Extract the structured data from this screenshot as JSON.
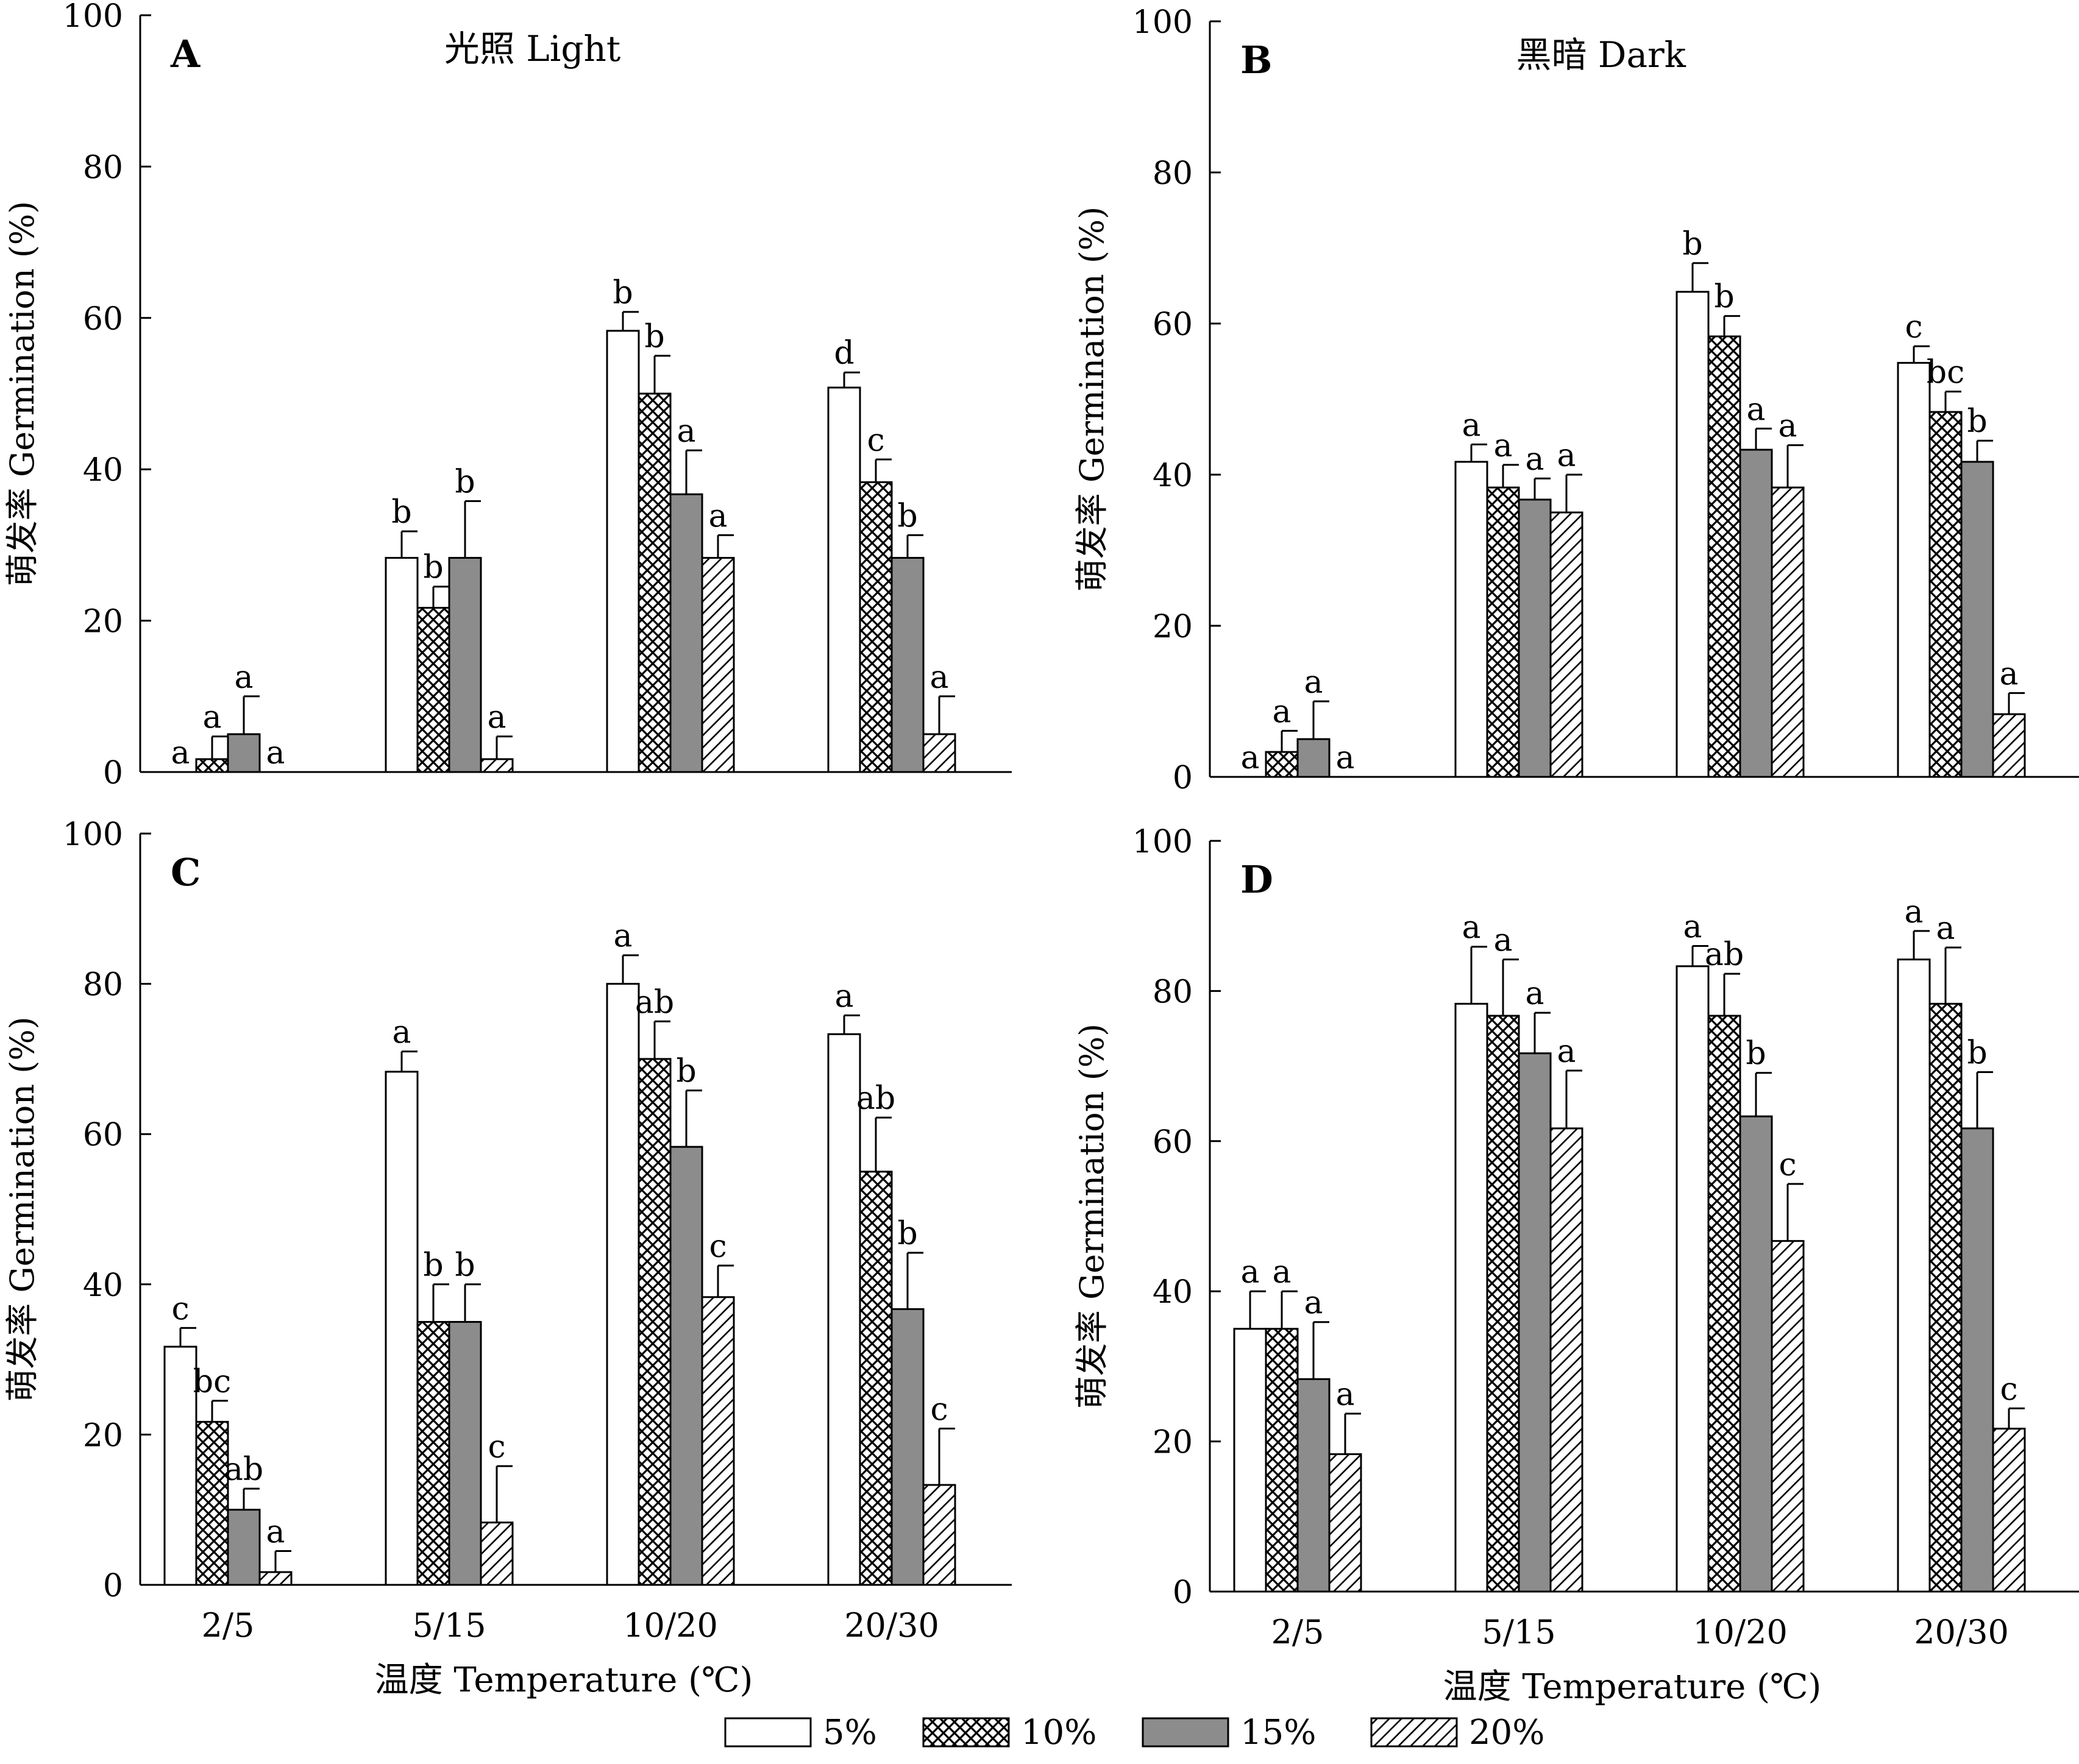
{
  "figure": {
    "xlabel": "温度 Temperature (℃)",
    "ylabel": "萌发率 Germination (%)",
    "categories": [
      "2/5",
      "5/15",
      "10/20",
      "20/30"
    ],
    "yticks": [
      "0",
      "20",
      "40",
      "60",
      "80",
      "100"
    ],
    "legend": [
      {
        "label": "5%",
        "pattern": "white"
      },
      {
        "label": "10%",
        "pattern": "crosshatch"
      },
      {
        "label": "15%",
        "pattern": "gray"
      },
      {
        "label": "20%",
        "pattern": "diagonal"
      }
    ],
    "colors": {
      "gray_fill": "#8c8c8c",
      "line": "#000000",
      "background": "#ffffff"
    }
  },
  "chart_data": [
    {
      "type": "bar",
      "panel_label": "A",
      "title": "光照 Light",
      "ylim": [
        0,
        100
      ],
      "categories": [
        "2/5",
        "5/15",
        "10/20",
        "20/30"
      ],
      "series": [
        {
          "name": "5%",
          "values": [
            0,
            28.3,
            58.3,
            50.8
          ],
          "errors": [
            0,
            3.5,
            2.5,
            2.0
          ],
          "letters": [
            "a",
            "b",
            "b",
            "d"
          ]
        },
        {
          "name": "10%",
          "values": [
            1.7,
            21.7,
            50.0,
            38.3
          ],
          "errors": [
            3.0,
            2.8,
            5.0,
            3.0
          ],
          "letters": [
            "a",
            "b",
            "b",
            "c"
          ]
        },
        {
          "name": "15%",
          "values": [
            5.0,
            28.3,
            36.7,
            28.3
          ],
          "errors": [
            5.0,
            7.5,
            5.8,
            3.0
          ],
          "letters": [
            "a",
            "b",
            "a",
            "b"
          ]
        },
        {
          "name": "20%",
          "values": [
            0,
            1.7,
            28.3,
            5.0
          ],
          "errors": [
            0,
            3.0,
            3.0,
            5.0
          ],
          "letters": [
            "a",
            "a",
            "a",
            "a"
          ]
        }
      ]
    },
    {
      "type": "bar",
      "panel_label": "B",
      "title": "黑暗 Dark",
      "ylim": [
        0,
        100
      ],
      "categories": [
        "2/5",
        "5/15",
        "10/20",
        "20/30"
      ],
      "series": [
        {
          "name": "5%",
          "values": [
            0,
            41.7,
            64.2,
            54.8
          ],
          "errors": [
            0,
            2.3,
            3.8,
            2.2
          ],
          "letters": [
            "a",
            "a",
            "b",
            "c"
          ]
        },
        {
          "name": "10%",
          "values": [
            3.3,
            38.3,
            58.3,
            48.3
          ],
          "errors": [
            2.8,
            3.0,
            2.7,
            2.7
          ],
          "letters": [
            "a",
            "a",
            "b",
            "bc"
          ]
        },
        {
          "name": "15%",
          "values": [
            5.0,
            36.7,
            43.3,
            41.7
          ],
          "errors": [
            5.0,
            2.8,
            2.8,
            2.8
          ],
          "letters": [
            "a",
            "a",
            "a",
            "b"
          ]
        },
        {
          "name": "20%",
          "values": [
            0,
            35.0,
            38.3,
            8.3
          ],
          "errors": [
            0,
            5.0,
            5.6,
            2.8
          ],
          "letters": [
            "a",
            "a",
            "a",
            "a"
          ]
        }
      ]
    },
    {
      "type": "bar",
      "panel_label": "C",
      "title": "",
      "ylim": [
        0,
        100
      ],
      "categories": [
        "2/5",
        "5/15",
        "10/20",
        "20/30"
      ],
      "series": [
        {
          "name": "5%",
          "values": [
            31.7,
            68.3,
            80.0,
            73.3
          ],
          "errors": [
            2.5,
            2.7,
            3.8,
            2.5
          ],
          "letters": [
            "c",
            "a",
            "a",
            "a"
          ]
        },
        {
          "name": "10%",
          "values": [
            21.7,
            35.0,
            70.0,
            55.0
          ],
          "errors": [
            2.8,
            5.0,
            5.0,
            7.2
          ],
          "letters": [
            "bc",
            "b",
            "ab",
            "ab"
          ]
        },
        {
          "name": "15%",
          "values": [
            10.0,
            35.0,
            58.3,
            36.7
          ],
          "errors": [
            2.8,
            5.0,
            7.5,
            7.5
          ],
          "letters": [
            "ab",
            "b",
            "b",
            "b"
          ]
        },
        {
          "name": "20%",
          "values": [
            1.7,
            8.3,
            38.3,
            13.3
          ],
          "errors": [
            2.8,
            7.5,
            4.2,
            7.5
          ],
          "letters": [
            "a",
            "c",
            "c",
            "c"
          ]
        }
      ]
    },
    {
      "type": "bar",
      "panel_label": "D",
      "title": "",
      "ylim": [
        0,
        100
      ],
      "categories": [
        "2/5",
        "5/15",
        "10/20",
        "20/30"
      ],
      "series": [
        {
          "name": "5%",
          "values": [
            35.0,
            78.3,
            83.3,
            84.2
          ],
          "errors": [
            5.0,
            7.6,
            2.7,
            3.8
          ],
          "letters": [
            "a",
            "a",
            "a",
            "a"
          ]
        },
        {
          "name": "10%",
          "values": [
            35.0,
            76.7,
            76.7,
            78.3
          ],
          "errors": [
            5.0,
            7.5,
            5.6,
            7.5
          ],
          "letters": [
            "a",
            "a",
            "ab",
            "a"
          ]
        },
        {
          "name": "15%",
          "values": [
            28.3,
            71.7,
            63.3,
            61.7
          ],
          "errors": [
            7.6,
            5.4,
            5.8,
            7.5
          ],
          "letters": [
            "a",
            "a",
            "b",
            "b"
          ]
        },
        {
          "name": "20%",
          "values": [
            18.3,
            61.7,
            46.7,
            21.7
          ],
          "errors": [
            5.4,
            7.7,
            7.6,
            2.7
          ],
          "letters": [
            "a",
            "a",
            "c",
            "c"
          ]
        }
      ]
    }
  ]
}
